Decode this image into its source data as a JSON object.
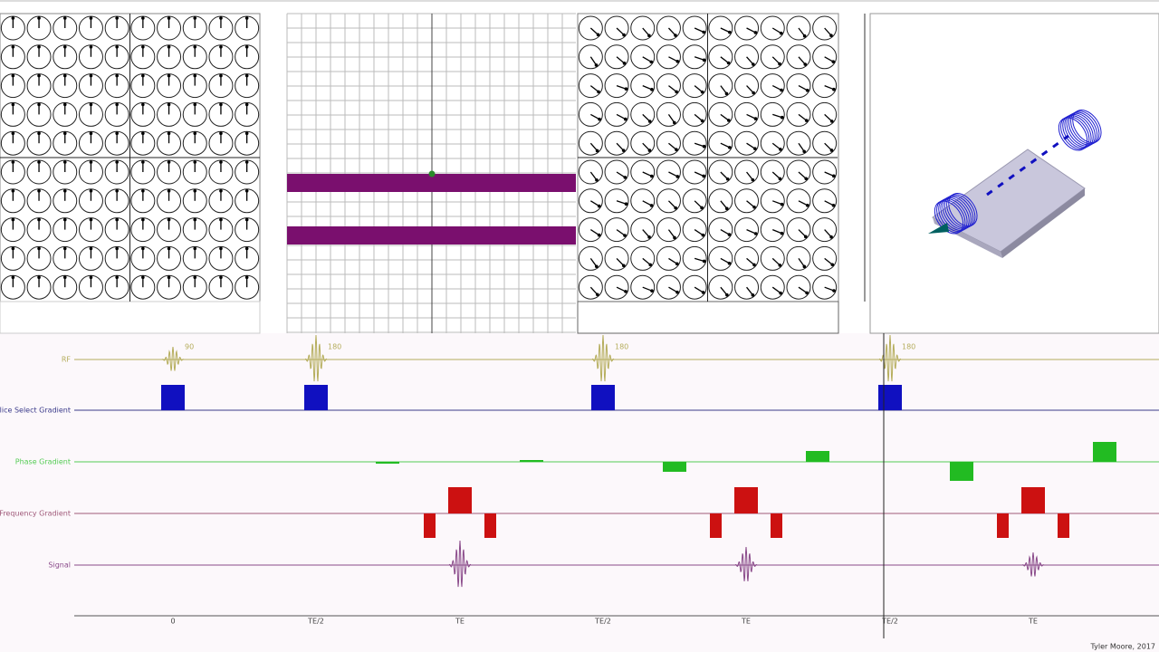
{
  "rows": {
    "rf": "RF",
    "slice": "Slice Select Gradient",
    "phase": "Phase Gradient",
    "frequency": "Frequency Gradient",
    "signal": "Signal"
  },
  "pulse_labels": [
    "90",
    "180",
    "180",
    "180"
  ],
  "time_labels": [
    "0",
    "TE/2",
    "TE",
    "TE/2",
    "TE",
    "TE/2",
    "TE"
  ],
  "credit": "Tyler Moore, 2017"
}
